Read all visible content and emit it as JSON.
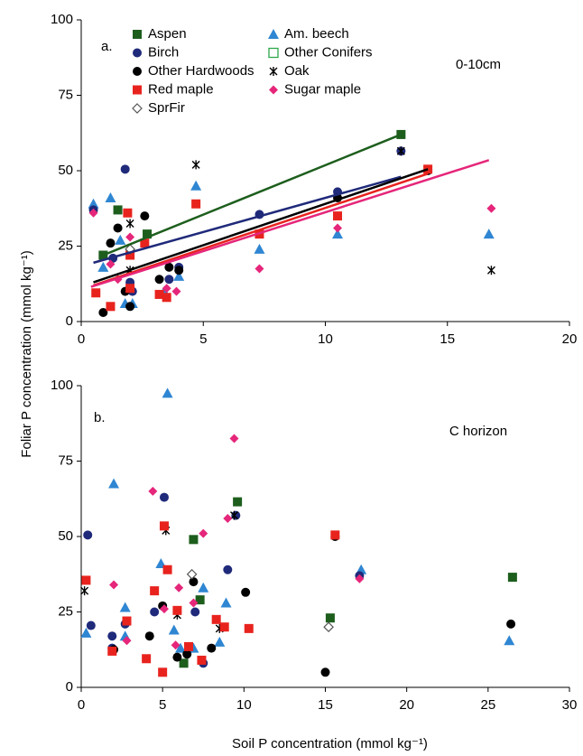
{
  "chart_data": [
    {
      "type": "scatter",
      "panel_label": "a.",
      "annotation": "0-10cm",
      "ylabel": "Foliar P concentration (mmol kg⁻¹)",
      "xlim": [
        0,
        20
      ],
      "xticks": [
        0,
        5,
        10,
        15,
        20
      ],
      "ylim": [
        0,
        100
      ],
      "yticks": [
        0,
        25,
        50,
        75,
        100
      ],
      "series": [
        {
          "name": "Aspen",
          "color": "#1d5e1d",
          "marker": "square",
          "x": [
            0.9,
            1.5,
            2.7,
            13.1
          ],
          "values": [
            22,
            37,
            29,
            62
          ],
          "trend_x": [
            0.9,
            13.1
          ],
          "trend_y": [
            22,
            62
          ]
        },
        {
          "name": "Am. beech",
          "color": "#2f86d2",
          "marker": "triangle",
          "x": [
            0.5,
            0.9,
            1.2,
            1.6,
            1.8,
            2.1,
            3.4,
            4.0,
            4.7,
            7.3,
            10.5,
            16.7
          ],
          "values": [
            39,
            18,
            41,
            27,
            6,
            6,
            10,
            15,
            45,
            24,
            29,
            29
          ]
        },
        {
          "name": "Birch",
          "color": "#1f2a7a",
          "marker": "circle",
          "x": [
            0.5,
            1.3,
            1.8,
            2.0,
            2.1,
            3.6,
            4.0,
            7.3,
            10.5,
            13.1
          ],
          "values": [
            37,
            21,
            50.5,
            13,
            10,
            14,
            18,
            35.5,
            43,
            56.5
          ],
          "trend_x": [
            0.5,
            13.1
          ],
          "trend_y": [
            19.5,
            48
          ]
        },
        {
          "name": "Other Conifers",
          "color": "#2ea84a",
          "marker": "open-square",
          "x": [],
          "values": []
        },
        {
          "name": "Other Hardwoods",
          "color": "#000000",
          "marker": "circle",
          "x": [
            0.9,
            1.2,
            1.5,
            1.8,
            2.0,
            2.6,
            3.2,
            3.6,
            4.0,
            10.5,
            14.2
          ],
          "values": [
            3,
            26,
            31,
            10,
            5,
            35,
            14,
            18,
            17,
            41,
            50
          ],
          "trend_x": [
            0.5,
            14.2
          ],
          "trend_y": [
            13,
            50.5
          ]
        },
        {
          "name": "Oak",
          "color": "#000000",
          "marker": "asterisk",
          "x": [
            2.0,
            2.0,
            4.7,
            13.1,
            16.8
          ],
          "values": [
            32.5,
            17,
            52,
            56.5,
            17
          ]
        },
        {
          "name": "Red maple",
          "color": "#e8231e",
          "marker": "square",
          "x": [
            0.6,
            1.2,
            1.9,
            2.0,
            2.0,
            2.6,
            3.2,
            3.5,
            4.7,
            7.3,
            10.5,
            14.2
          ],
          "values": [
            9.5,
            5,
            36,
            22,
            11,
            26,
            9,
            8,
            39,
            29,
            35,
            50.5
          ],
          "trend_x": [
            0.5,
            14.2
          ],
          "trend_y": [
            12,
            49
          ]
        },
        {
          "name": "Sugar maple",
          "color": "#e5267a",
          "marker": "diamond",
          "x": [
            0.5,
            1.2,
            1.5,
            2.0,
            3.5,
            3.9,
            7.3,
            10.5,
            16.8
          ],
          "values": [
            36,
            19,
            14,
            28,
            11,
            10,
            17.5,
            31,
            37.5
          ],
          "trend_x": [
            0.4,
            16.7
          ],
          "trend_y": [
            11.5,
            53.5
          ]
        },
        {
          "name": "SprFir",
          "color": "#555555",
          "marker": "open-diamond",
          "x": [
            2.0
          ],
          "values": [
            24
          ]
        }
      ]
    },
    {
      "type": "scatter",
      "panel_label": "b.",
      "annotation": "C horizon",
      "xlabel": "Soil P concentration (mmol kg⁻¹)",
      "xlim": [
        0,
        30
      ],
      "xticks": [
        0,
        5,
        10,
        15,
        20,
        25,
        30
      ],
      "ylim": [
        0,
        100
      ],
      "yticks": [
        0,
        25,
        50,
        75,
        100
      ],
      "series": [
        {
          "color": "#1d5e1d",
          "marker": "square",
          "x": [
            6.3,
            6.9,
            7.3,
            9.6,
            15.3,
            26.5
          ],
          "values": [
            8,
            49,
            29,
            61.5,
            23,
            36.5
          ]
        },
        {
          "color": "#2f86d2",
          "marker": "triangle",
          "x": [
            0.3,
            2.0,
            2.7,
            2.7,
            4.9,
            5.3,
            5.7,
            6.1,
            6.9,
            7.5,
            8.5,
            8.9,
            17.2,
            26.3
          ],
          "values": [
            18,
            67.5,
            26.5,
            17,
            41,
            97.5,
            19,
            13,
            13,
            33,
            15,
            28,
            39,
            15.5
          ]
        },
        {
          "color": "#1f2a7a",
          "marker": "circle",
          "x": [
            0.4,
            0.6,
            1.9,
            1.9,
            2.7,
            4.5,
            5.1,
            7.0,
            7.5,
            9.0,
            9.5,
            17.1
          ],
          "values": [
            50.5,
            20.5,
            13,
            17,
            21,
            25,
            63,
            25,
            8,
            39,
            57,
            37
          ]
        },
        {
          "color": "#2ea84a",
          "marker": "open-square",
          "x": [],
          "values": []
        },
        {
          "color": "#000000",
          "marker": "circle",
          "x": [
            2.0,
            4.2,
            5.0,
            5.9,
            6.5,
            6.9,
            8.0,
            10.1,
            15.0,
            15.6,
            26.4
          ],
          "values": [
            12.5,
            17,
            27,
            10,
            11,
            35,
            13,
            31.5,
            5,
            50,
            21
          ]
        },
        {
          "color": "#000000",
          "marker": "asterisk",
          "x": [
            0.2,
            5.2,
            5.9,
            8.5,
            9.4
          ],
          "values": [
            32,
            52,
            24,
            19.5,
            57
          ]
        },
        {
          "color": "#e8231e",
          "marker": "square",
          "x": [
            0.3,
            1.9,
            2.8,
            4.0,
            4.5,
            5.0,
            5.1,
            5.3,
            5.9,
            6.6,
            7.4,
            8.3,
            8.8,
            10.3,
            15.6
          ],
          "values": [
            35.5,
            12,
            22,
            9.5,
            32,
            5,
            53.5,
            39,
            25.5,
            13.5,
            9,
            22.5,
            20,
            19.5,
            50.5
          ]
        },
        {
          "color": "#e5267a",
          "marker": "diamond",
          "x": [
            2.0,
            2.8,
            4.4,
            5.1,
            5.8,
            6.0,
            6.9,
            7.5,
            9.0,
            9.4,
            17.1
          ],
          "values": [
            34,
            15.5,
            65,
            26,
            14,
            33,
            28,
            51,
            56,
            82.5,
            36
          ]
        },
        {
          "color": "#555555",
          "marker": "open-diamond",
          "x": [
            6.8,
            15.2
          ],
          "values": [
            37.5,
            20
          ]
        }
      ]
    }
  ]
}
